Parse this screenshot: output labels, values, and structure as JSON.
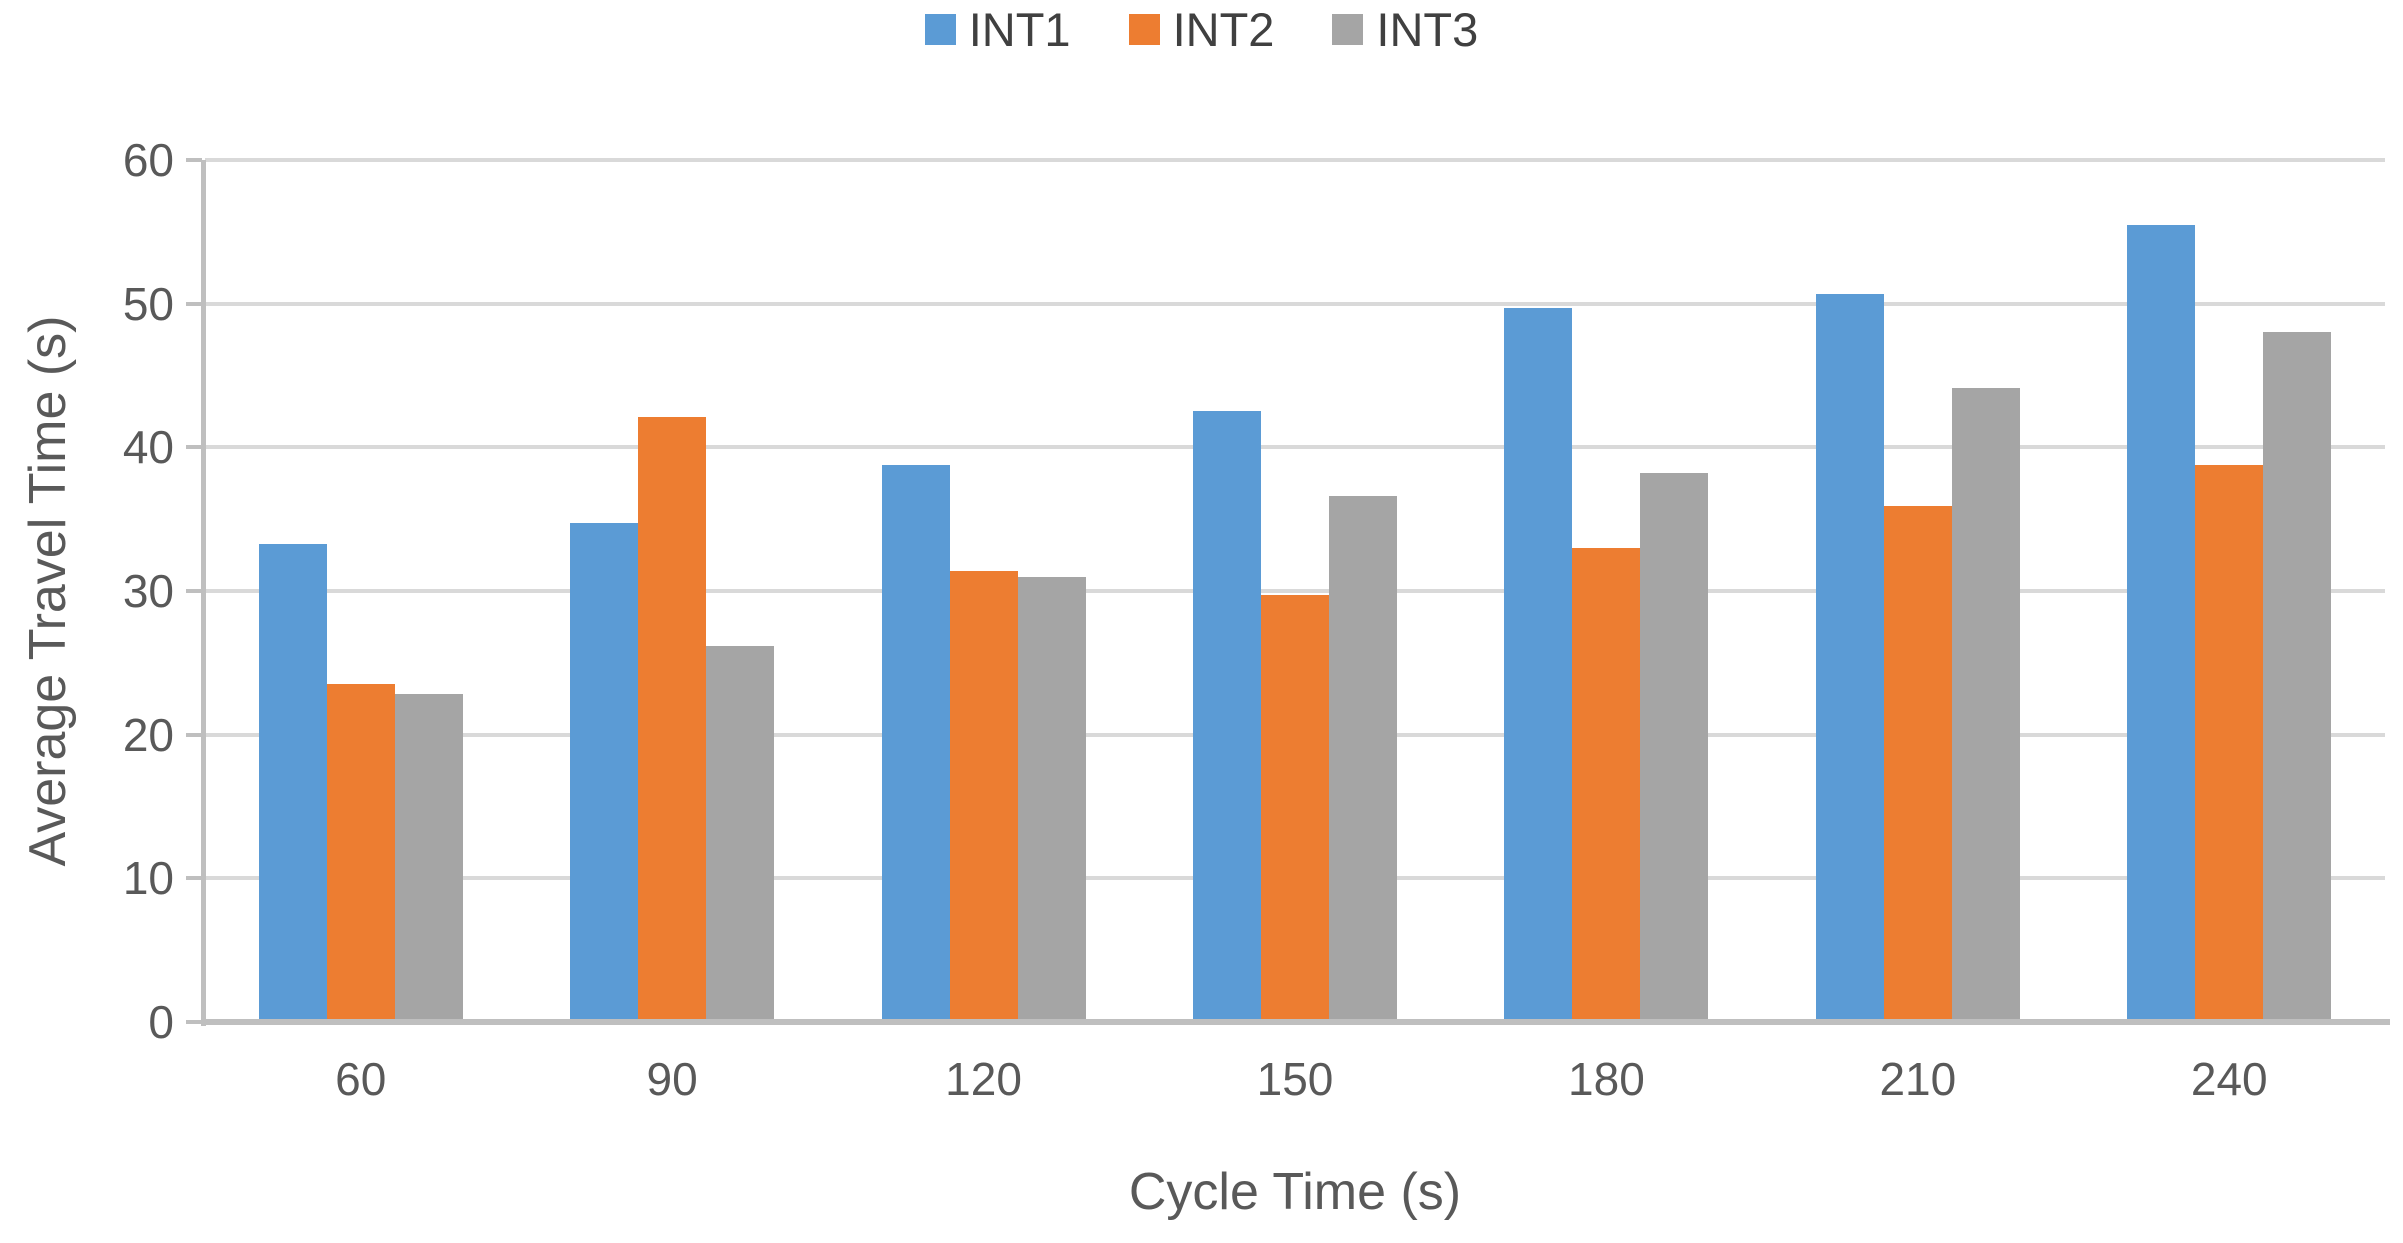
{
  "chart_data": {
    "type": "bar",
    "title": "",
    "xlabel": "Cycle Time (s)",
    "ylabel": "Average Travel Time (s)",
    "categories": [
      "60",
      "90",
      "120",
      "150",
      "180",
      "210",
      "240"
    ],
    "series": [
      {
        "name": "INT1",
        "color": "#5B9BD5",
        "values": [
          33.3,
          34.7,
          38.8,
          42.5,
          49.7,
          50.7,
          55.5
        ]
      },
      {
        "name": "INT2",
        "color": "#ED7D31",
        "values": [
          23.5,
          42.1,
          31.4,
          29.7,
          33.0,
          35.9,
          38.8
        ]
      },
      {
        "name": "INT3",
        "color": "#A5A5A5",
        "values": [
          22.8,
          26.2,
          31.0,
          36.6,
          38.2,
          44.1,
          48.0
        ]
      }
    ],
    "ylim": [
      0,
      60
    ],
    "yticks": [
      "0",
      "10",
      "20",
      "30",
      "40",
      "50",
      "60"
    ],
    "legend_position": "top-center",
    "grid": "horizontal",
    "style": {
      "gridline_color": "#D9D9D9",
      "axis_line_color": "#BFBFBF",
      "tick_label_color": "#595959",
      "axis_title_color": "#595959",
      "legend_text_color": "#404040",
      "background": "#FFFFFF"
    }
  }
}
